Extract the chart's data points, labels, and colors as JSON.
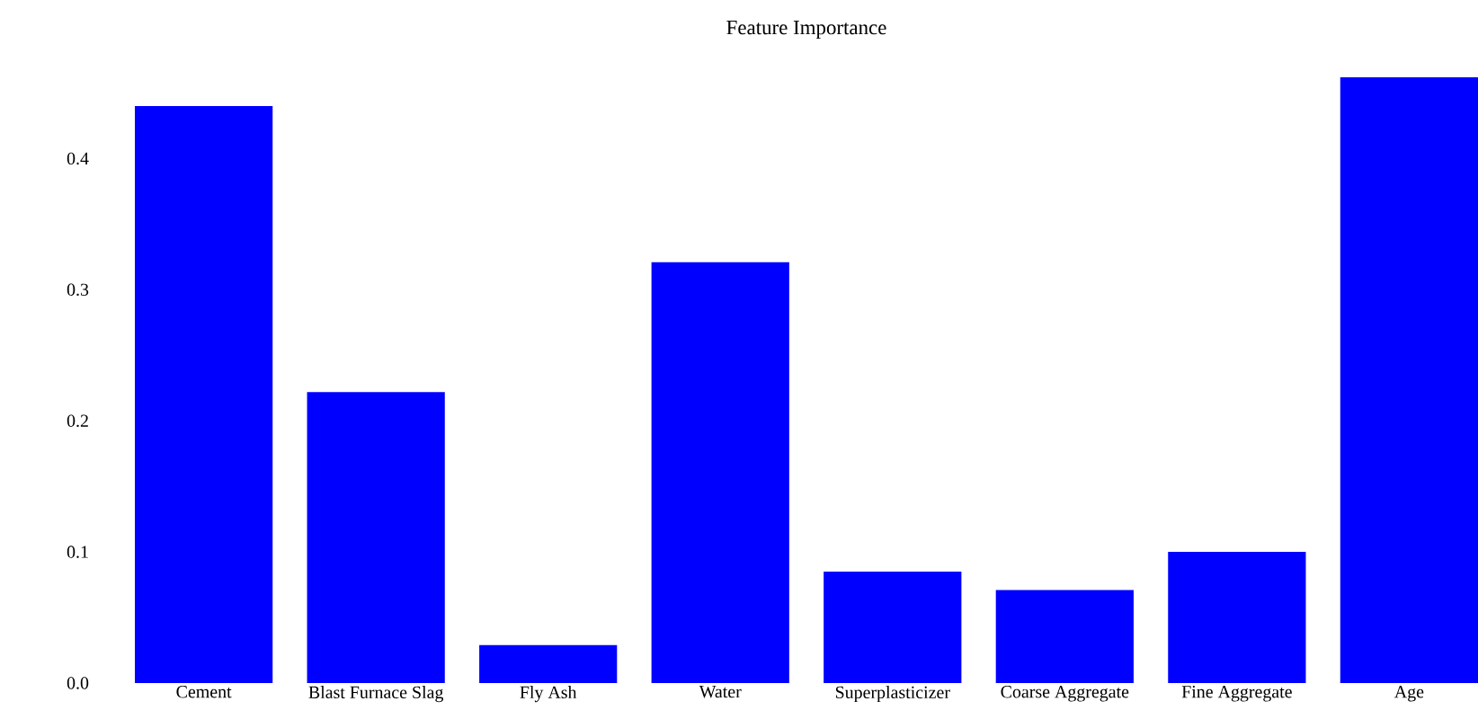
{
  "chart_data": {
    "type": "bar",
    "title": "Feature Importance",
    "categories": [
      "Cement",
      "Blast Furnace Slag",
      "Fly Ash",
      "Water",
      "Superplasticizer",
      "Coarse Aggregate",
      "Fine Aggregate",
      "Age"
    ],
    "values": [
      0.44,
      0.222,
      0.029,
      0.321,
      0.085,
      0.071,
      0.1,
      0.462
    ],
    "color": "#0000ff",
    "yticks": [
      {
        "value": 0,
        "label": "0.0"
      },
      {
        "value": 0.1,
        "label": "0.1"
      },
      {
        "value": 0.2,
        "label": "0.2"
      },
      {
        "value": 0.3,
        "label": "0.3"
      },
      {
        "value": 0.4,
        "label": "0.4"
      }
    ],
    "ylim": [
      0,
      0.462
    ],
    "grid": false
  }
}
